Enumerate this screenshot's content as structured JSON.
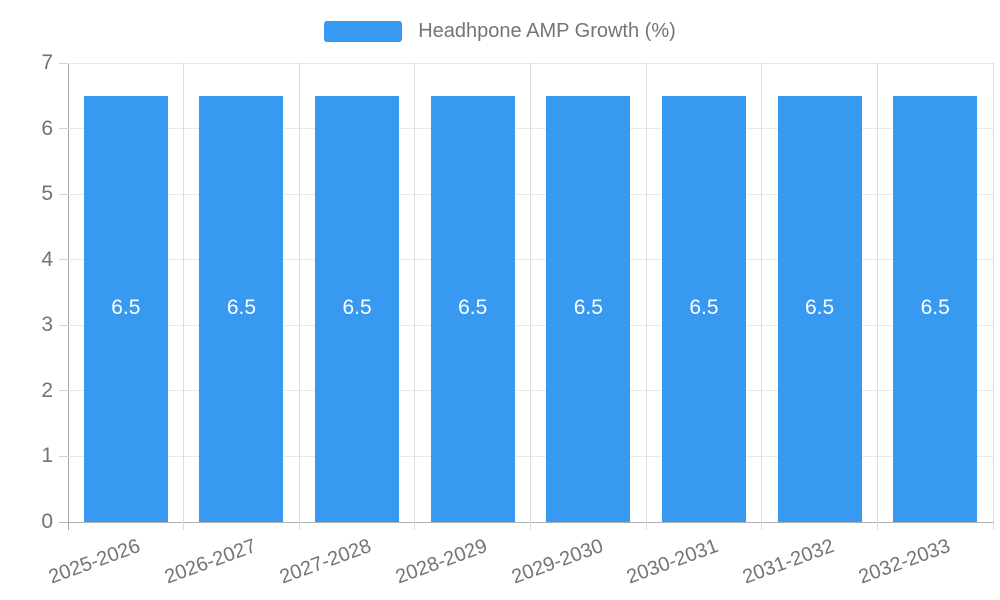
{
  "legend": {
    "title": "Headhpone AMP Growth (%)"
  },
  "chart_data": {
    "type": "bar",
    "title": "Headhpone AMP Growth (%)",
    "categories": [
      "2025-2026",
      "2026-2027",
      "2027-2028",
      "2028-2029",
      "2029-2030",
      "2030-2031",
      "2031-2032",
      "2032-2033"
    ],
    "values": [
      6.5,
      6.5,
      6.5,
      6.5,
      6.5,
      6.5,
      6.5,
      6.5
    ],
    "bar_labels": [
      "6.5",
      "6.5",
      "6.5",
      "6.5",
      "6.5",
      "6.5",
      "6.5",
      "6.5"
    ],
    "xlabel": "",
    "ylabel": "",
    "ylim": [
      0,
      7
    ],
    "yticks": [
      0,
      1,
      2,
      3,
      4,
      5,
      6,
      7
    ],
    "grid": true,
    "legend_position": "top",
    "colors": {
      "bar": "#3899f0",
      "bar_label": "#ffffff",
      "axis_text": "#747474",
      "background": "#ffffff"
    }
  }
}
